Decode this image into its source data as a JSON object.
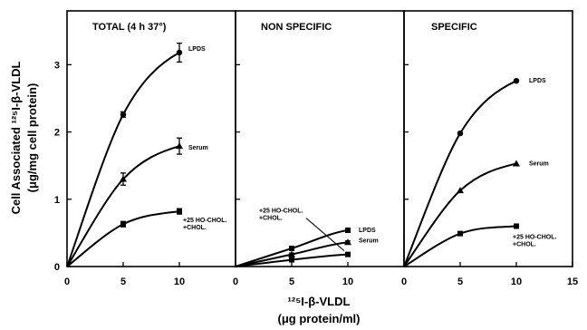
{
  "chart_data": {
    "type": "line",
    "ylabel_line1": "Cell Associated ¹²⁵I-β-VLDL",
    "ylabel_line2": "(μg/mg cell protein)",
    "xlabel_line1": "¹²⁵I-β-VLDL",
    "xlabel_line2": "(μg protein/ml)",
    "ylim": [
      0,
      3.8
    ],
    "y_ticks": [
      0,
      1,
      2,
      3
    ],
    "panels": [
      {
        "title": "TOTAL (4 h   37°)",
        "xlim": [
          0,
          15
        ],
        "x_ticks": [
          0,
          5,
          10
        ],
        "series": [
          {
            "name": "LPDS",
            "marker": "circle",
            "x": [
              0,
              5,
              10
            ],
            "y": [
              0,
              2.26,
              3.18
            ],
            "err": [
              0,
              0.04,
              0.14
            ]
          },
          {
            "name": "Serum",
            "marker": "triangle",
            "x": [
              0,
              5,
              10
            ],
            "y": [
              0,
              1.3,
              1.79
            ],
            "err": [
              0,
              0.09,
              0.12
            ]
          },
          {
            "name": "+25 HO-CHOL.\n+CHOL.",
            "marker": "square",
            "x": [
              0,
              5,
              10
            ],
            "y": [
              0,
              0.63,
              0.82
            ],
            "err": [
              0,
              0.04,
              0.04
            ]
          }
        ]
      },
      {
        "title": "NON SPECIFIC",
        "xlim": [
          0,
          15
        ],
        "x_ticks": [
          0,
          5,
          10
        ],
        "series": [
          {
            "name": "LPDS",
            "marker": "square",
            "x": [
              0,
              5,
              10
            ],
            "y": [
              0,
              0.27,
              0.54
            ],
            "err": [
              0,
              0.02,
              0.03
            ]
          },
          {
            "name": "Serum",
            "marker": "triangle",
            "x": [
              0,
              5,
              10
            ],
            "y": [
              0,
              0.18,
              0.36
            ],
            "err": [
              0,
              0.02,
              0.02
            ]
          },
          {
            "name": "+25 HO-CHOL.\n+CHOL.",
            "marker": "square",
            "x": [
              0,
              5,
              10
            ],
            "y": [
              0,
              0.1,
              0.18
            ],
            "err": [
              0,
              0.02,
              0.02
            ]
          }
        ]
      },
      {
        "title": "SPECIFIC",
        "xlim": [
          0,
          15
        ],
        "x_ticks": [
          0,
          5,
          10,
          15
        ],
        "series": [
          {
            "name": "LPDS",
            "marker": "circle",
            "x": [
              0,
              5,
              10
            ],
            "y": [
              0,
              1.98,
              2.76
            ],
            "err": [
              0,
              0,
              0
            ]
          },
          {
            "name": "Serum",
            "marker": "triangle",
            "x": [
              0,
              5,
              10
            ],
            "y": [
              0,
              1.13,
              1.53
            ],
            "err": [
              0,
              0,
              0
            ]
          },
          {
            "name": "+25 HO-CHOL.\n+CHOL.",
            "marker": "square",
            "x": [
              0,
              5,
              10
            ],
            "y": [
              0,
              0.49,
              0.6
            ],
            "err": [
              0,
              0,
              0
            ]
          }
        ]
      }
    ]
  }
}
